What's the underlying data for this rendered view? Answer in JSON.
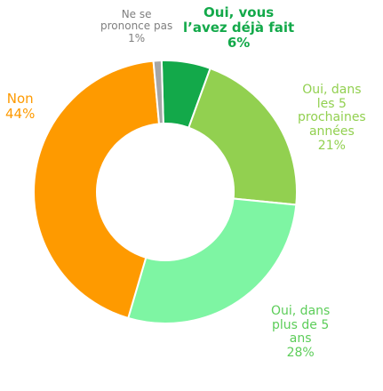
{
  "chart_data": {
    "type": "pie",
    "donut": true,
    "slices": [
      {
        "lines": [
          "Oui, vous",
          "l’avez déjà fait"
        ],
        "value": 6,
        "value_label": "6%",
        "color": "#13a94a",
        "label_color": "#13a94a",
        "label_bold": true,
        "label_size": 15
      },
      {
        "lines": [
          "Oui, dans",
          "les 5",
          "prochaines",
          "années"
        ],
        "value": 21,
        "value_label": "21%",
        "color": "#92d050",
        "label_color": "#92d050",
        "label_bold": false,
        "label_size": 14
      },
      {
        "lines": [
          "Oui, dans",
          "plus de 5",
          "ans"
        ],
        "value": 28,
        "value_label": "28%",
        "color": "#7ef5a3",
        "label_color": "#5ccd59",
        "label_bold": false,
        "label_size": 14
      },
      {
        "lines": [
          "Non"
        ],
        "value": 44,
        "value_label": "44%",
        "color": "#fe9a00",
        "label_color": "#fe9a00",
        "label_bold": false,
        "label_size": 15
      },
      {
        "lines": [
          "Ne se",
          "prononce pas"
        ],
        "value": 1,
        "value_label": "1%",
        "color": "#a6a6a6",
        "label_color": "#7f7f7f",
        "label_bold": false,
        "label_size": 12
      }
    ]
  }
}
